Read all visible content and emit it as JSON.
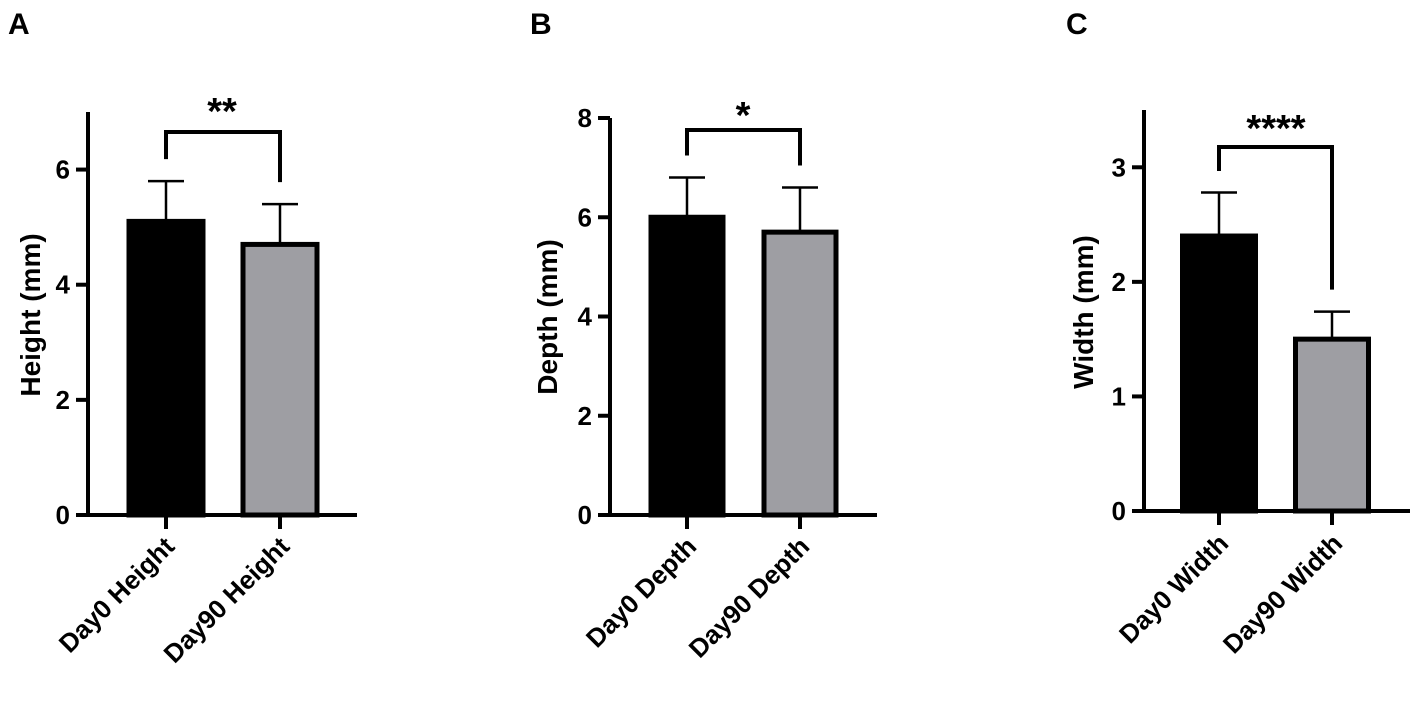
{
  "chart_data": [
    {
      "panel": "A",
      "type": "bar",
      "ylabel": "Height (mm)",
      "categories": [
        "Day0 Height",
        "Day90 Height"
      ],
      "values": [
        5.1,
        4.7
      ],
      "errors": [
        0.7,
        0.7
      ],
      "colors": [
        "#000000",
        "#9e9ea3"
      ],
      "ylim": [
        0,
        7
      ],
      "yticks": [
        0,
        2,
        4,
        6
      ],
      "significance": "**"
    },
    {
      "panel": "B",
      "type": "bar",
      "ylabel": "Depth (mm)",
      "categories": [
        "Day0 Depth",
        "Day90 Depth"
      ],
      "values": [
        6.0,
        5.7
      ],
      "errors": [
        0.8,
        0.9
      ],
      "colors": [
        "#000000",
        "#9e9ea3"
      ],
      "ylim": [
        0,
        8
      ],
      "yticks": [
        0,
        2,
        4,
        6,
        8
      ],
      "significance": "*"
    },
    {
      "panel": "C",
      "type": "bar",
      "ylabel": "Width (mm)",
      "categories": [
        "Day0 Width",
        "Day90 Width"
      ],
      "values": [
        2.4,
        1.5
      ],
      "errors": [
        0.38,
        0.24
      ],
      "colors": [
        "#000000",
        "#9e9ea3"
      ],
      "ylim": [
        0,
        3.5
      ],
      "yticks": [
        0,
        1,
        2,
        3
      ],
      "significance": "****"
    }
  ]
}
